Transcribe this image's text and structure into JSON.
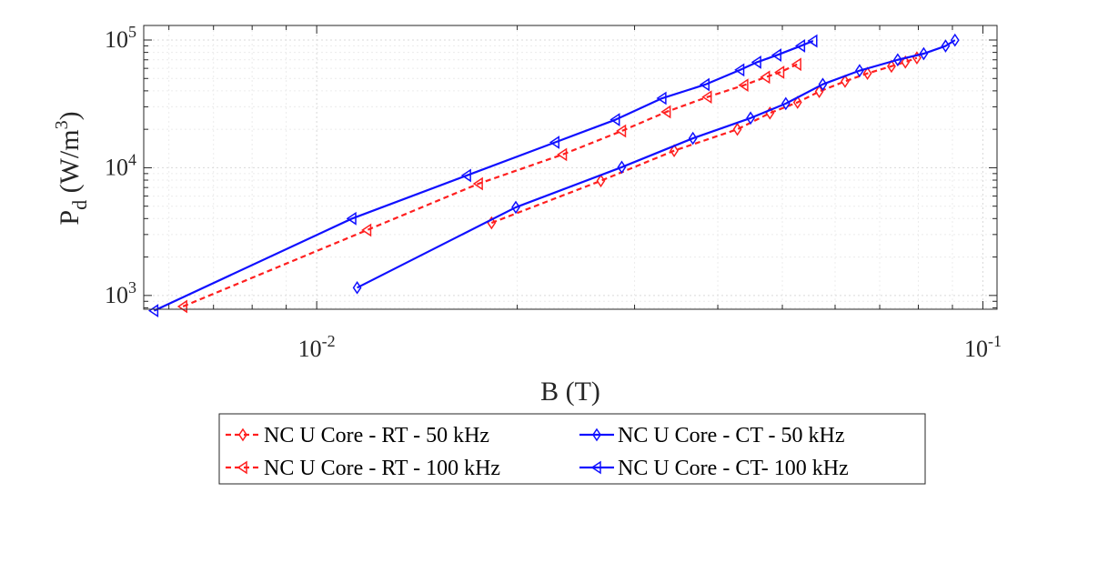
{
  "chart_data": {
    "type": "line",
    "xscale": "log",
    "yscale": "log",
    "xlim": [
      0.0055,
      0.105
    ],
    "ylim": [
      780,
      130000
    ],
    "grid": true,
    "xlabel": "B (T)",
    "ylabel": {
      "base": "P",
      "sub": "d",
      "units_prefix": " (W/m",
      "units_sup": "3",
      "units_suffix": ")"
    },
    "xticks": [
      {
        "value": 0.01,
        "base": "10",
        "exp": "-2"
      },
      {
        "value": 0.1,
        "base": "10",
        "exp": "-1"
      }
    ],
    "yticks": [
      {
        "value": 1000,
        "base": "10",
        "exp": "3"
      },
      {
        "value": 10000,
        "base": "10",
        "exp": "4"
      },
      {
        "value": 100000,
        "base": "10",
        "exp": "5"
      }
    ],
    "legend_position": "bottom",
    "series": [
      {
        "name": "NC U Core - RT - 50 kHz",
        "color": "#ff1f1f",
        "dash": true,
        "marker": "diamond",
        "x": [
          0.0183,
          0.0267,
          0.0344,
          0.0428,
          0.0479,
          0.0527,
          0.0568,
          0.0621,
          0.0671,
          0.0729,
          0.0765,
          0.0796
        ],
        "y": [
          3700,
          7900,
          13600,
          20000,
          26800,
          32500,
          39500,
          47500,
          54800,
          62300,
          67200,
          72500
        ]
      },
      {
        "name": "NC U Core - RT - 100 kHz",
        "color": "#ff1f1f",
        "dash": true,
        "marker": "triangle-left",
        "x": [
          0.0063,
          0.0119,
          0.0175,
          0.0234,
          0.0287,
          0.0335,
          0.0386,
          0.0438,
          0.0472,
          0.0496,
          0.0526
        ],
        "y": [
          820,
          3250,
          7500,
          12700,
          19400,
          27400,
          35800,
          44300,
          51200,
          55900,
          64500
        ]
      },
      {
        "name": "NC U Core - CT - 50 kHz",
        "color": "#1010ff",
        "dash": false,
        "marker": "diamond",
        "x": [
          0.0115,
          0.0199,
          0.0287,
          0.0367,
          0.0448,
          0.0506,
          0.0575,
          0.0653,
          0.0745,
          0.0815,
          0.0879,
          0.0908
        ],
        "y": [
          1150,
          4900,
          10100,
          17000,
          24500,
          31800,
          45000,
          57600,
          70000,
          78200,
          89800,
          99800
        ]
      },
      {
        "name": "NC U Core - CT- 100 kHz",
        "color": "#1010ff",
        "dash": false,
        "marker": "triangle-left",
        "x": [
          0.0057,
          0.0113,
          0.0168,
          0.0228,
          0.0281,
          0.033,
          0.0383,
          0.0432,
          0.0458,
          0.0491,
          0.0533,
          0.0556
        ],
        "y": [
          760,
          4000,
          8700,
          15800,
          23800,
          35000,
          44800,
          58300,
          67000,
          76200,
          90000,
          98300
        ]
      }
    ]
  }
}
